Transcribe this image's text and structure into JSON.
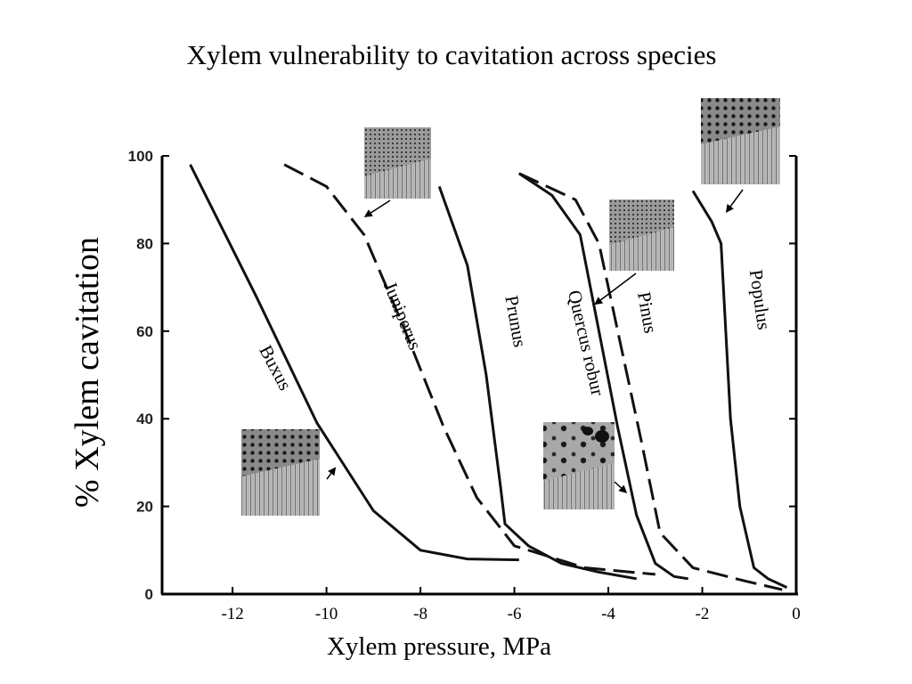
{
  "chart_data": {
    "type": "line",
    "title": "Xylem vulnerability to cavitation across species",
    "xlabel": "Xylem pressure, MPa",
    "ylabel": "% Xylem cavitation",
    "xlim": [
      -13.5,
      0
    ],
    "ylim": [
      0,
      100
    ],
    "x_ticks": [
      {
        "value": -12,
        "label": "-12"
      },
      {
        "value": -10,
        "label": "-10"
      },
      {
        "value": -8,
        "label": "-8"
      },
      {
        "value": -6,
        "label": "-6"
      },
      {
        "value": -4,
        "label": "-4"
      },
      {
        "value": -2,
        "label": "-2"
      },
      {
        "value": 0,
        "label": "0"
      }
    ],
    "y_ticks": [
      {
        "value": 0,
        "label": "0"
      },
      {
        "value": 20,
        "label": "20"
      },
      {
        "value": 40,
        "label": "40"
      },
      {
        "value": 60,
        "label": "60"
      },
      {
        "value": 80,
        "label": "80"
      },
      {
        "value": 100,
        "label": "100"
      }
    ],
    "grid": false,
    "series": [
      {
        "name": "Buxus",
        "style": "solid",
        "points": [
          [
            -12.9,
            98
          ],
          [
            -11.5,
            68
          ],
          [
            -10.2,
            39
          ],
          [
            -9.0,
            19
          ],
          [
            -8.0,
            10
          ],
          [
            -7.0,
            8
          ],
          [
            -5.9,
            7.8
          ]
        ]
      },
      {
        "name": "Juniperus",
        "style": "dashed",
        "points": [
          [
            -10.9,
            98
          ],
          [
            -10.0,
            93
          ],
          [
            -9.2,
            82
          ],
          [
            -8.4,
            62
          ],
          [
            -7.5,
            38
          ],
          [
            -6.8,
            22
          ],
          [
            -6.0,
            11
          ],
          [
            -4.5,
            6
          ],
          [
            -3.0,
            4.5
          ]
        ]
      },
      {
        "name": "Prunus",
        "style": "solid",
        "points": [
          [
            -7.6,
            93
          ],
          [
            -7.0,
            75
          ],
          [
            -6.6,
            50
          ],
          [
            -6.3,
            25
          ],
          [
            -6.2,
            16
          ],
          [
            -5.7,
            11
          ],
          [
            -5.0,
            7
          ],
          [
            -4.2,
            5
          ],
          [
            -3.4,
            3.5
          ]
        ]
      },
      {
        "name": "Quercus robur",
        "style": "solid",
        "points": [
          [
            -5.9,
            96
          ],
          [
            -5.2,
            91
          ],
          [
            -4.6,
            82
          ],
          [
            -4.2,
            60
          ],
          [
            -3.8,
            38
          ],
          [
            -3.4,
            18
          ],
          [
            -3.0,
            7
          ],
          [
            -2.6,
            4
          ],
          [
            -2.3,
            3.5
          ]
        ]
      },
      {
        "name": "Pinus",
        "style": "dashed",
        "points": [
          [
            -5.9,
            96
          ],
          [
            -4.7,
            90
          ],
          [
            -4.2,
            80
          ],
          [
            -3.8,
            60
          ],
          [
            -3.3,
            35
          ],
          [
            -2.9,
            14
          ],
          [
            -2.2,
            6
          ],
          [
            -1.1,
            3
          ],
          [
            -0.3,
            1
          ]
        ]
      },
      {
        "name": "Populus",
        "style": "solid",
        "points": [
          [
            -2.2,
            92
          ],
          [
            -1.8,
            85
          ],
          [
            -1.6,
            80
          ],
          [
            -1.4,
            40
          ],
          [
            -1.2,
            20
          ],
          [
            -0.9,
            6
          ],
          [
            -0.6,
            3.5
          ],
          [
            -0.2,
            1.5
          ]
        ]
      }
    ],
    "annotations": [
      {
        "text": "Buxus",
        "x": -11.2,
        "y": 51,
        "rotate": 62
      },
      {
        "text": "Juniperus",
        "x": -8.5,
        "y": 63,
        "rotate": 68
      },
      {
        "text": "Prunus",
        "x": -6.1,
        "y": 62,
        "rotate": 80
      },
      {
        "text": "Quercus robur",
        "x": -4.6,
        "y": 57,
        "rotate": 77
      },
      {
        "text": "Pinus",
        "x": -3.3,
        "y": 64,
        "rotate": 80
      },
      {
        "text": "Populus",
        "x": -0.9,
        "y": 67,
        "rotate": 82
      }
    ],
    "insets": [
      {
        "id": "juniperus-micrograph",
        "arrow_to": [
          -9.2,
          86
        ]
      },
      {
        "id": "buxus-micrograph",
        "arrow_to": [
          -9.8,
          29
        ]
      },
      {
        "id": "quercus-micrograph",
        "arrow_to": [
          -3.6,
          23
        ]
      },
      {
        "id": "pinus-micrograph",
        "arrow_to": [
          -4.3,
          66
        ]
      },
      {
        "id": "populus-micrograph",
        "arrow_to": [
          -1.5,
          87
        ]
      }
    ]
  }
}
